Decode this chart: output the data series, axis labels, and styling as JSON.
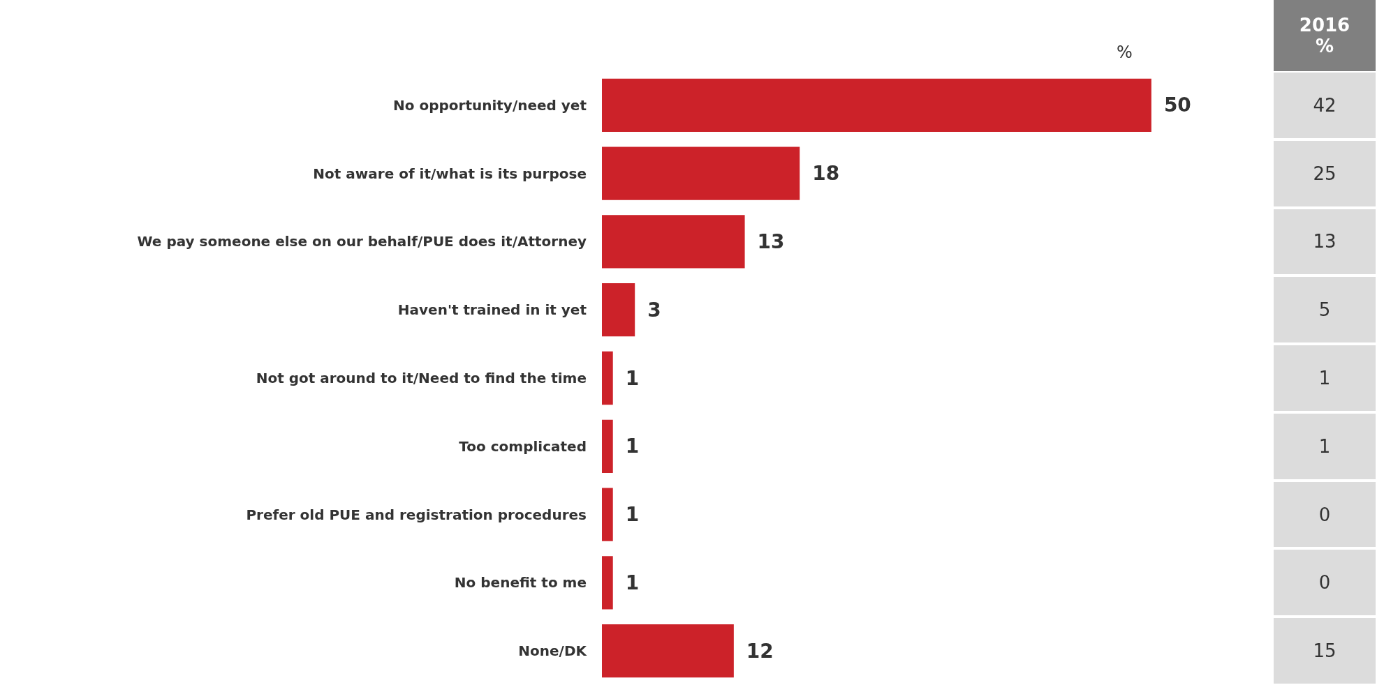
{
  "chart_data": [
    {
      "type": "bar",
      "orientation": "horizontal",
      "xlabel": "%",
      "categories": [
        "No opportunity/need yet",
        "Not aware of it/what is its purpose",
        "We pay someone else on our behalf/PUE does it/Attorney",
        "Haven't trained in it yet",
        "Not got around to it/Need to find the time",
        "Too complicated",
        "Prefer old PUE and registration procedures",
        "No benefit to me",
        "None/DK"
      ],
      "values": [
        50,
        18,
        13,
        3,
        1,
        1,
        1,
        1,
        12
      ],
      "color": "#cc2229",
      "data_labels": true
    },
    {
      "type": "other",
      "title": "2016 %",
      "annotations": [
        "42",
        "25",
        "13",
        "5",
        "1",
        "1",
        "0",
        "0",
        "15"
      ]
    }
  ]
}
